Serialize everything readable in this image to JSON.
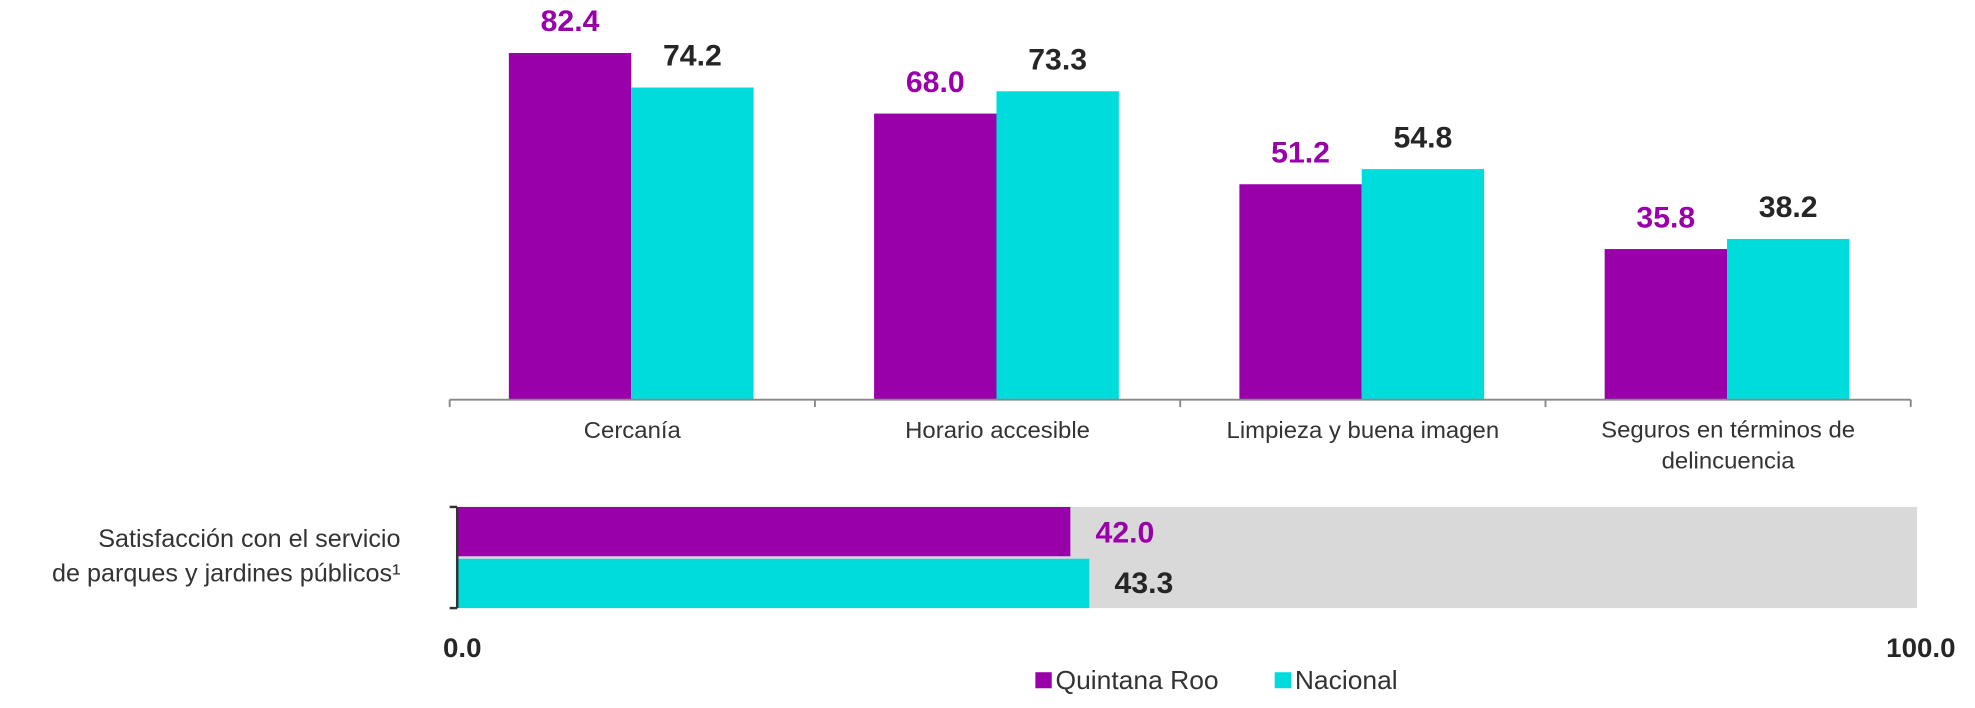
{
  "chart_data": [
    {
      "type": "bar",
      "categories": [
        "Cercanía",
        "Horario accesible",
        "Limpieza y buena imagen",
        "Seguros en términos de\ndelincuencia"
      ],
      "series": [
        {
          "name": "Quintana Roo",
          "color": "#9900aa",
          "values": [
            82.4,
            68,
            51.2,
            35.8
          ],
          "value_labels": [
            "82.4",
            "68.0",
            "51.2",
            "35.8"
          ]
        },
        {
          "name": "Nacional",
          "color": "#00dcdc",
          "values": [
            74.2,
            73.3,
            54.8,
            38.2
          ],
          "value_labels": [
            "74.2",
            "73.3",
            "54.8",
            "38.2"
          ]
        }
      ],
      "ylim": [
        0,
        95
      ]
    },
    {
      "type": "hbar",
      "categories": [
        "Satisfacción con el servicio\nde parques y jardines públicos¹"
      ],
      "series": [
        {
          "name": "Quintana Roo",
          "color": "#9900aa",
          "values": [
            42
          ],
          "value_labels": [
            "42.0"
          ]
        },
        {
          "name": "Nacional",
          "color": "#00dcdc",
          "values": [
            43.3
          ],
          "value_labels": [
            "43.3"
          ]
        }
      ],
      "xlim": [
        0,
        100
      ],
      "xticks": [
        {
          "value": 0,
          "label": "0.0"
        },
        {
          "value": 100,
          "label": "100.0"
        }
      ]
    }
  ]
}
